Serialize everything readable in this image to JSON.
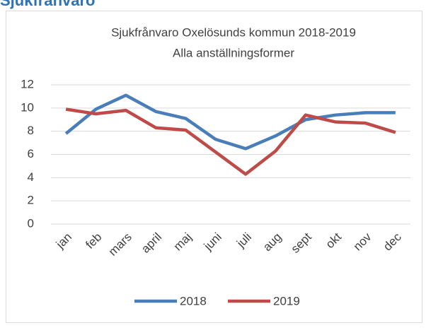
{
  "heading": "Sjukfrånvaro",
  "chart_data": {
    "type": "line",
    "title": [
      "Sjukfrånvaro Oxelösunds kommun 2018-2019",
      "Alla anställningsformer"
    ],
    "categories": [
      "jan",
      "feb",
      "mars",
      "april",
      "maj",
      "juni",
      "juli",
      "aug",
      "sept",
      "okt",
      "nov",
      "dec"
    ],
    "series": [
      {
        "name": "2018",
        "color": "#4a7ebb",
        "values": [
          7.8,
          9.9,
          11.1,
          9.7,
          9.1,
          7.3,
          6.5,
          7.6,
          9.0,
          9.4,
          9.6,
          9.6
        ]
      },
      {
        "name": "2019",
        "color": "#be4b48",
        "values": [
          9.9,
          9.5,
          9.8,
          8.3,
          8.1,
          6.2,
          4.3,
          6.3,
          9.4,
          8.8,
          8.7,
          7.9
        ]
      }
    ],
    "ylim": [
      0,
      12
    ],
    "yticks": [
      0,
      2,
      4,
      6,
      8,
      10,
      12
    ],
    "grid": true,
    "legend": "bottom"
  }
}
